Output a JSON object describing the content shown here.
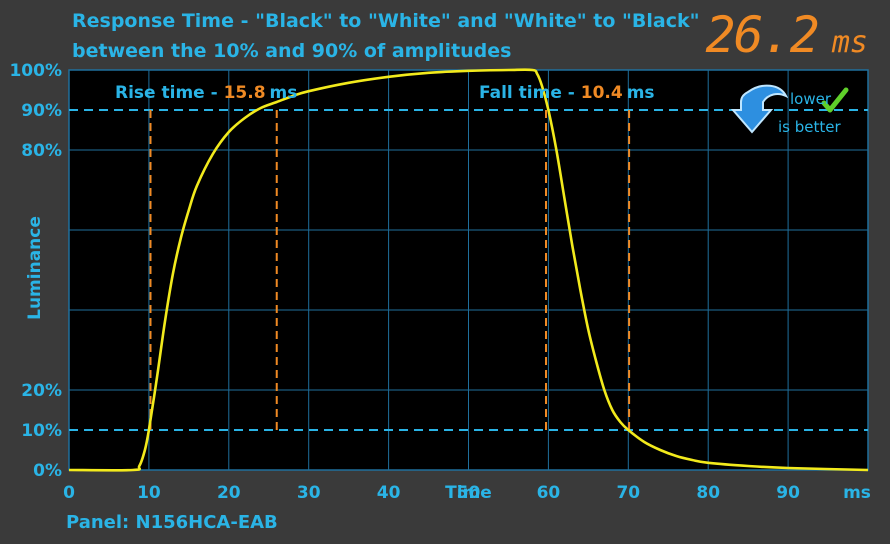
{
  "header": {
    "title_line1": "Response Time - \"Black\" to \"White\" and \"White\" to \"Black\"",
    "title_line2": "between the 10% and 90% of amplitudes",
    "total_value": "26.2",
    "total_unit": "ms"
  },
  "footer": {
    "panel": "Panel: N156HCA-EAB"
  },
  "badge": {
    "line1": "lower",
    "line2": "is better",
    "icon": "down-arrow-icon"
  },
  "colors": {
    "background": "#000000",
    "page_background": "#3a3a3a",
    "grid": "#1f6f9c",
    "accent_text": "#2ab4e6",
    "curve": "#f2ea1c",
    "markers": "#f08a24",
    "threshold": "#2ab4e6"
  },
  "chart_data": {
    "type": "line",
    "xlabel": "Time",
    "xunit": "ms",
    "ylabel": "Luminance",
    "xlim": [
      0,
      100
    ],
    "ylim": [
      0,
      100
    ],
    "x_ticks": [
      0,
      10,
      20,
      30,
      40,
      50,
      60,
      70,
      80,
      90
    ],
    "y_ticks": [
      0,
      10,
      20,
      80,
      90,
      100
    ],
    "y_tick_labels": [
      "0%",
      "10%",
      "20%",
      "80%",
      "90%",
      "100%"
    ],
    "grid": true,
    "thresholds": [
      10,
      90
    ],
    "series": [
      {
        "x": [
          0,
          8,
          8.8,
          9.5,
          10,
          11,
          12,
          13,
          14,
          15,
          16,
          18,
          20,
          22,
          24,
          26,
          28,
          30,
          35,
          40,
          45,
          50,
          55,
          58,
          58.6,
          59.2,
          60,
          61,
          62,
          63,
          64,
          65,
          66,
          67,
          68,
          69,
          70,
          72,
          74,
          76,
          78,
          80,
          85,
          90,
          100
        ],
        "y": [
          0,
          0,
          1,
          5,
          10,
          23,
          37,
          49,
          58,
          65,
          71,
          79,
          84.5,
          88,
          90.5,
          92,
          93.5,
          94.7,
          96.8,
          98.3,
          99.3,
          99.8,
          100,
          100,
          99,
          96,
          90,
          80,
          68,
          56,
          45,
          35,
          27,
          20,
          15,
          12,
          10,
          7,
          5,
          3.5,
          2.5,
          1.8,
          1.0,
          0.5,
          0
        ]
      }
    ],
    "annotations": {
      "rise": {
        "label": "Rise time - ",
        "value": "15.8",
        "unit": "ms",
        "start": 10.2,
        "end": 26
      },
      "fall": {
        "label": "Fall time - ",
        "value": "10.4",
        "unit": "ms",
        "start": 59.7,
        "end": 70.1
      }
    }
  }
}
